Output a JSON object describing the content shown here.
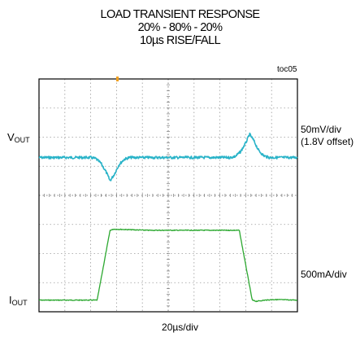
{
  "chart_data": {
    "type": "line",
    "title": [
      "LOAD TRANSIENT RESPONSE",
      "20% - 80% - 20%",
      "10µs RISE/FALL"
    ],
    "figure_tag": "toc05",
    "xlabel": "20µs/div",
    "grid": true,
    "divisions": {
      "x": 10,
      "y": 8
    },
    "x_unit": "µs",
    "xlim": [
      0,
      200
    ],
    "series": [
      {
        "name": "VOUT",
        "color": "#29b3c8",
        "scale": "50mV/div",
        "offset_label": "(1.8V offset)",
        "units": "mV",
        "x": [
          0,
          40,
          44,
          48,
          52,
          55,
          58,
          62,
          66,
          70,
          148,
          152,
          156,
          160,
          163,
          166,
          170,
          174,
          178,
          200
        ],
        "y": [
          0,
          0,
          -2,
          -10,
          -25,
          -40,
          -30,
          -12,
          -3,
          0,
          0,
          2,
          10,
          25,
          40,
          30,
          12,
          3,
          0,
          0
        ]
      },
      {
        "name": "IOUT",
        "color": "#2ca830",
        "scale": "500mA/div",
        "units": "A",
        "x": [
          0,
          45,
          55,
          58,
          70,
          85,
          120,
          140,
          155,
          165,
          168,
          175,
          182,
          200
        ],
        "y": [
          0.4,
          0.4,
          1.6,
          1.62,
          1.61,
          1.6,
          1.6,
          1.6,
          1.6,
          0.4,
          0.38,
          0.4,
          0.41,
          0.4
        ]
      }
    ]
  },
  "labels": {
    "vout_main": "V",
    "vout_sub": "OUT",
    "iout_main": "I",
    "iout_sub": "OUT",
    "vout_scale": "50mV/div",
    "vout_offset": "(1.8V offset)",
    "iout_scale": "500mA/div"
  }
}
